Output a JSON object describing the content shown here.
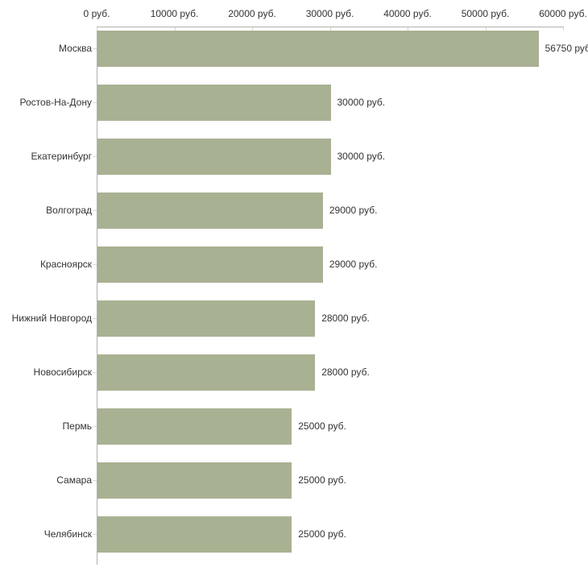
{
  "chart_data": {
    "type": "bar",
    "orientation": "horizontal",
    "title": "",
    "xlabel": "",
    "ylabel": "",
    "xlim": [
      0,
      60000
    ],
    "grid": false,
    "legend": false,
    "categories": [
      "Москва",
      "Ростов-На-Дону",
      "Екатеринбург",
      "Волгоград",
      "Красноярск",
      "Нижний Новгород",
      "Новосибирск",
      "Пермь",
      "Самара",
      "Челябинск"
    ],
    "values": [
      56750,
      30000,
      30000,
      29000,
      29000,
      28000,
      28000,
      25000,
      25000,
      25000
    ],
    "value_labels": [
      "56750 руб",
      "30000 руб.",
      "30000 руб.",
      "29000 руб.",
      "29000 руб.",
      "28000 руб.",
      "28000 руб.",
      "25000 руб.",
      "25000 руб.",
      "25000 руб."
    ],
    "x_tick_values": [
      0,
      10000,
      20000,
      30000,
      40000,
      50000,
      60000
    ],
    "x_tick_labels": [
      "0 руб.",
      "10000 руб.",
      "20000 руб.",
      "30000 руб.",
      "40000 руб.",
      "50000 руб.",
      "60000 руб."
    ],
    "colors": {
      "bar": "#a9b193",
      "axis": "#b0b0b0",
      "tick": "#d8dcc2",
      "text": "#333333",
      "background": "#ffffff"
    }
  }
}
